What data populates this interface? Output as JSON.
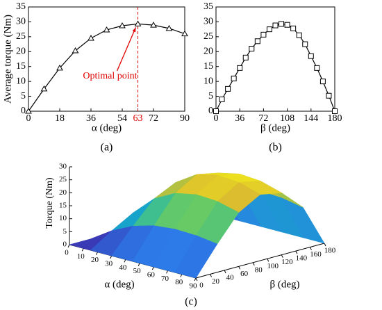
{
  "chart_data": [
    {
      "type": "line",
      "marker": "triangle",
      "color": "#000000",
      "ylabel": "Average torque (Nm)",
      "xlabel": "α (deg)",
      "panel": "(a)",
      "x": [
        0,
        9,
        18,
        27,
        36,
        45,
        54,
        63,
        72,
        81,
        90
      ],
      "values": [
        0,
        7.5,
        14.5,
        20.3,
        24.5,
        27.3,
        28.7,
        29.3,
        28.9,
        27.8,
        26.0
      ],
      "xlim": [
        0,
        90
      ],
      "xticks": [
        0,
        18,
        36,
        54,
        63,
        72,
        90
      ],
      "ylim": [
        0,
        35
      ],
      "yticks": [
        0,
        5,
        10,
        15,
        20,
        25,
        30,
        35
      ],
      "annotation": {
        "text": "Optimal point",
        "x": 63,
        "y": 29.3,
        "color": "#e00000"
      }
    },
    {
      "type": "line",
      "marker": "square",
      "color": "#000000",
      "xlabel": "β (deg)",
      "panel": "(b)",
      "x": [
        0,
        9,
        18,
        27,
        36,
        45,
        54,
        63,
        72,
        81,
        90,
        99,
        108,
        117,
        126,
        135,
        144,
        153,
        162,
        171,
        180
      ],
      "values": [
        0,
        4,
        7.5,
        11,
        14.5,
        18,
        21,
        23.5,
        25.7,
        27.5,
        28.8,
        29.3,
        29,
        27.8,
        25.5,
        22.5,
        18.5,
        14.5,
        10,
        5.2,
        0
      ],
      "xlim": [
        0,
        180
      ],
      "xticks": [
        0,
        36,
        72,
        108,
        144,
        180
      ],
      "ylim": [
        0,
        35
      ],
      "yticks": [
        0,
        5,
        10,
        15,
        20,
        25,
        30,
        35
      ]
    },
    {
      "type": "surface",
      "zlabel": "Torque (Nm)",
      "xlabel": "α (deg)",
      "ylabel": "β (deg)",
      "panel": "(c)",
      "x": [
        0,
        15,
        30,
        45,
        60,
        75,
        90
      ],
      "y": [
        0,
        30,
        60,
        90,
        120,
        150,
        180
      ],
      "z": [
        [
          0,
          0,
          0,
          0,
          0,
          0,
          0
        ],
        [
          0,
          5.3,
          10,
          12.3,
          11.5,
          7.8,
          0
        ],
        [
          0,
          9.2,
          17.6,
          21.6,
          20.2,
          13.6,
          0
        ],
        [
          0,
          11.5,
          21.8,
          26.8,
          25.1,
          16.9,
          0
        ],
        [
          0,
          12.3,
          23.4,
          28.6,
          26.9,
          18.1,
          0
        ],
        [
          0,
          12,
          22.9,
          28,
          26.3,
          17.7,
          0
        ],
        [
          0,
          10.9,
          20.8,
          25.5,
          23.9,
          16.1,
          0
        ]
      ],
      "xlim": [
        0,
        90
      ],
      "xticks": [
        0,
        10,
        20,
        30,
        40,
        50,
        60,
        70,
        80,
        90
      ],
      "ylim": [
        0,
        180
      ],
      "yticks": [
        0,
        20,
        40,
        60,
        80,
        100,
        120,
        140,
        160,
        180
      ],
      "zlim": [
        0,
        30
      ],
      "zticks": [
        0,
        5,
        10,
        15,
        20,
        25,
        30
      ]
    }
  ]
}
